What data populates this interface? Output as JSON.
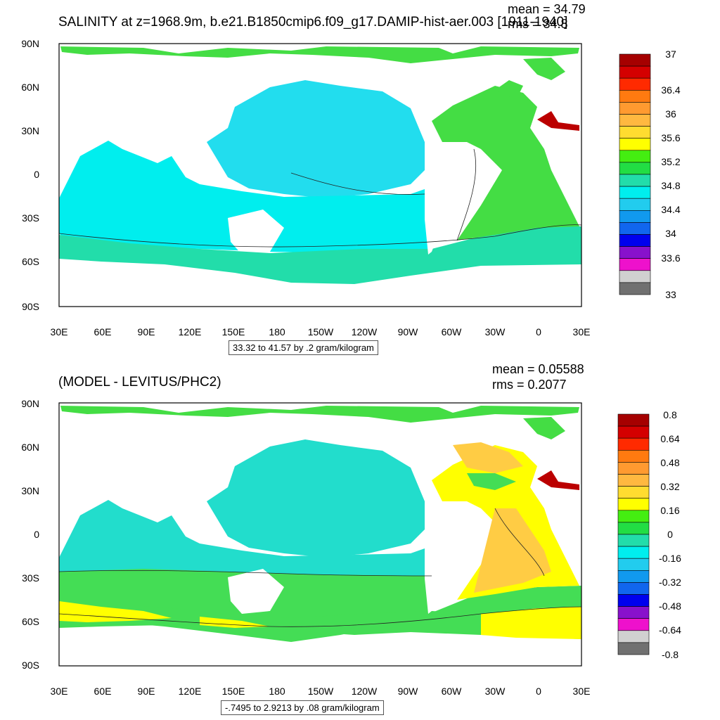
{
  "panel1": {
    "title": "SALINITY at z=1968.9m, b.e21.B1850cmip6.f09_g17.DAMIP-hist-aer.003 [1911-1940]",
    "mean_text": "mean = 34.79",
    "rms_text": "rms = 34.8",
    "range_text": "33.32 to 41.57 by .2 gram/kilogram",
    "colorbar_labels": [
      "37",
      "36.4",
      "36",
      "35.6",
      "35.2",
      "34.8",
      "34.4",
      "34",
      "33.6",
      "33"
    ]
  },
  "panel2": {
    "title": "(MODEL - LEVITUS/PHC2)",
    "mean_text": "mean = 0.05588",
    "rms_text": "rms = 0.2077",
    "range_text": "-.7495 to 2.9213 by .08 gram/kilogram",
    "colorbar_labels": [
      "0.8",
      "0.64",
      "0.48",
      "0.32",
      "0.16",
      "0",
      "-0.16",
      "-0.32",
      "-0.48",
      "-0.64",
      "-0.8"
    ]
  },
  "lat_labels": [
    "90N",
    "60N",
    "30N",
    "0",
    "30S",
    "60S",
    "90S"
  ],
  "lon_labels": [
    "30E",
    "60E",
    "90E",
    "120E",
    "150E",
    "180",
    "150W",
    "120W",
    "90W",
    "60W",
    "30W",
    "0",
    "30E"
  ],
  "colors": {
    "colorbar": [
      "#a50000",
      "#d40000",
      "#ff2a00",
      "#ff7a10",
      "#ff9a30",
      "#ffb840",
      "#ffdc30",
      "#ffff00",
      "#44ee11",
      "#22dd44",
      "#22ddaa",
      "#00eeee",
      "#22ccee",
      "#1199ee",
      "#1166ee",
      "#0000ee",
      "#8811cc",
      "#ee11cc",
      "#d0d0d0",
      "#707070"
    ],
    "p1_ocean_north_pacific": "#22ddee",
    "p1_ocean_south": "#00eeee",
    "p1_southern_band": "#22ddaa",
    "p1_atlantic": "#44dd44",
    "p2_pacific": "#22ddcc",
    "p2_southern": "#44dd55",
    "p2_atlantic_yellow": "#ffff00",
    "p2_atlantic_orange": "#ffcc44",
    "p2_positive_band": "#ffff00",
    "med": "#bb0000"
  }
}
